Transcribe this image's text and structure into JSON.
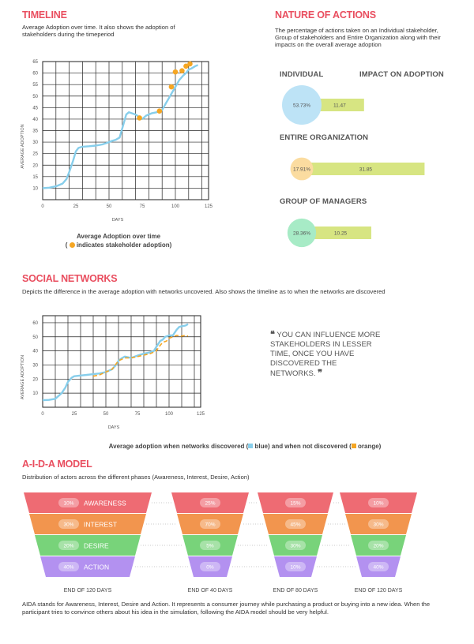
{
  "timeline": {
    "heading": "TIMELINE",
    "desc": "Average Adoption over time. It also shows the adoption of stakeholders during the timeperiod",
    "caption_title": "Average Adoption over time",
    "caption_note_prefix": "(",
    "caption_note": "indicates stakeholder adoption)"
  },
  "nature": {
    "heading": "NATURE OF ACTIONS",
    "desc": "The percentage of actions taken on an Individual stakeholder, Group of stakeholders and Entire Organization along with their impacts on the overall average adoption",
    "col_left": "INDIVIDUAL",
    "col_right": "IMPACT ON ADOPTION",
    "rows": [
      {
        "label": "",
        "percent": "53.73%",
        "percent_value": 53.73,
        "impact": "11.47",
        "impact_value": 11.47,
        "circle_color": "#bde3f6"
      },
      {
        "label": "ENTIRE ORGANIZATION",
        "percent": "17.91%",
        "percent_value": 17.91,
        "impact": "31.85",
        "impact_value": 31.85,
        "circle_color": "#fbdca0"
      },
      {
        "label": "GROUP OF MANAGERS",
        "percent": "28.36%",
        "percent_value": 28.36,
        "impact": "10.25",
        "impact_value": 10.25,
        "circle_color": "#a7ebc6"
      }
    ],
    "bar_color": "#d7e582"
  },
  "social": {
    "heading": "SOCIAL NETWORKS",
    "desc": "Depicts the difference in the average adoption with networks uncovered. Also shows the timeline as to when the networks are discovered",
    "quote_open": "❝",
    "quote": "YOU CAN INFLUENCE MORE STAKEHOLDERS IN LESSER TIME, ONCE YOU HAVE DISCOVERED THE NETWORKS.",
    "quote_close": "❞",
    "caption_prefix": "Average adoption when networks discovered (",
    "caption_blue": "blue) and when not discovered (",
    "caption_orange": "orange)"
  },
  "aida": {
    "heading": "A-I-D-A MODEL",
    "desc": "Distribution of actors across the different phases (Awareness, Interest, Desire, Action)",
    "phases": [
      {
        "name": "AWARENESS",
        "color": "#ee6b73"
      },
      {
        "name": "INTEREST",
        "color": "#f2954e"
      },
      {
        "name": "DESIRE",
        "color": "#78d37a"
      },
      {
        "name": "ACTION",
        "color": "#b391f0"
      }
    ],
    "funnels": [
      {
        "label": "END OF 120 DAYS",
        "values": [
          "10%",
          "30%",
          "20%",
          "40%"
        ],
        "show_names": true
      },
      {
        "label": "END OF 40 DAYS",
        "values": [
          "25%",
          "70%",
          "5%",
          "0%"
        ],
        "show_names": false
      },
      {
        "label": "END OF 80 DAYS",
        "values": [
          "15%",
          "45%",
          "30%",
          "10%"
        ],
        "show_names": false
      },
      {
        "label": "END OF 120 DAYS",
        "values": [
          "10%",
          "30%",
          "20%",
          "40%"
        ],
        "show_names": false
      }
    ],
    "footer": "AIDA stands for Awareness, Interest, Desire and Action. It represents a consumer journey while purchasing a product or buying into a new idea. When the participant tries to convince others about his idea in the simulation, following the AIDA model should be very helpful."
  },
  "chart_data": [
    {
      "type": "line",
      "xlabel": "DAYS",
      "ylabel": "AVERAGE ADOPTION",
      "xlim": [
        0,
        125
      ],
      "ylim": [
        5,
        65
      ],
      "x_ticks": [
        0,
        25,
        50,
        75,
        100,
        125
      ],
      "x_tick_labels": [
        "0",
        "25",
        "50",
        "75",
        "100",
        "125"
      ],
      "y_ticks": [
        10,
        15,
        20,
        25,
        30,
        35,
        40,
        45,
        50,
        55,
        60,
        65
      ],
      "grid": true,
      "series": [
        {
          "color": "#87ceeb",
          "x": [
            0,
            5,
            10,
            15,
            18,
            20,
            23,
            25,
            27,
            30,
            35,
            40,
            45,
            50,
            52,
            55,
            58,
            60,
            63,
            65,
            70,
            75,
            78,
            82,
            86,
            90,
            93,
            95,
            98,
            100,
            103,
            106,
            108,
            110,
            112,
            115,
            117
          ],
          "y": [
            10,
            10.2,
            10.8,
            12,
            14,
            17,
            22,
            26,
            27.5,
            28,
            28.2,
            28.5,
            29,
            30,
            30.5,
            31,
            32,
            36,
            42,
            43,
            42,
            40,
            41.5,
            42.5,
            43,
            44,
            47,
            49,
            52,
            54,
            57,
            59,
            60,
            61.5,
            62,
            63,
            63.5
          ]
        }
      ],
      "markers": {
        "color": "#f5a623",
        "x": [
          73,
          88,
          97,
          100,
          105,
          108,
          111
        ],
        "y": [
          40.5,
          43.5,
          54,
          60.5,
          61,
          63,
          64
        ]
      }
    },
    {
      "type": "line",
      "xlabel": "DAYS",
      "ylabel": "AVERAGE ADOPTION",
      "xlim": [
        0,
        125
      ],
      "ylim": [
        0,
        65
      ],
      "x_ticks": [
        0,
        25,
        50,
        75,
        100,
        125
      ],
      "x_tick_labels": [
        "0",
        "25",
        "50",
        "75",
        "100",
        "125"
      ],
      "y_ticks": [
        10,
        20,
        30,
        40,
        50,
        60
      ],
      "grid": true,
      "series": [
        {
          "color": "#87ceeb",
          "x": [
            0,
            5,
            10,
            15,
            18,
            20,
            23,
            25,
            30,
            35,
            40,
            45,
            50,
            55,
            58,
            60,
            63,
            65,
            70,
            73,
            76,
            80,
            85,
            88,
            90,
            93,
            95,
            97,
            100,
            103,
            106,
            108,
            110,
            113,
            115
          ],
          "y": [
            5,
            5.2,
            6,
            10,
            14,
            18,
            21,
            22,
            22.5,
            23,
            23.5,
            24,
            25,
            27,
            30,
            33,
            35,
            36,
            35,
            36,
            37,
            38,
            39,
            40,
            43,
            47,
            48,
            50,
            51,
            51,
            55,
            57,
            57.5,
            58,
            59
          ]
        },
        {
          "color": "#f5a623",
          "dashed": true,
          "x": [
            40,
            45,
            50,
            55,
            60,
            65,
            70,
            75,
            80,
            85,
            90,
            93,
            95,
            98,
            100,
            103,
            106,
            110,
            113,
            115
          ],
          "y": [
            22,
            23,
            25,
            27,
            33,
            35,
            35,
            36,
            37,
            38,
            40,
            44,
            46,
            47,
            49,
            50,
            51,
            50.5,
            51,
            50.5
          ]
        }
      ],
      "markers": {
        "color": "#f5a623",
        "x": [],
        "y": []
      }
    }
  ]
}
